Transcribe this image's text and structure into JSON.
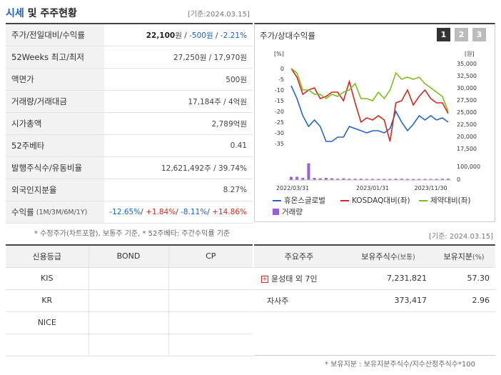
{
  "header": {
    "title_a": "시세",
    "title_b": "및 주주현황",
    "asof": "[기준:2024.03.15]"
  },
  "quote": {
    "rows": [
      {
        "label": "주가/전일대비/수익률"
      },
      {
        "label": "52Weeks 최고/최저",
        "value": "27,250원 / 17,970원"
      },
      {
        "label": "액면가",
        "value": "500원"
      },
      {
        "label": "거래량/거래대금",
        "value": "17,184주 / 4억원"
      },
      {
        "label": "시가총액",
        "value": "2,789억원"
      },
      {
        "label": "52주베타",
        "value": "0.41"
      },
      {
        "label": "발행주식수/유동비율",
        "value": "12,621,492주 / 39.74%"
      },
      {
        "label": "외국인지분율",
        "value": "8.27%"
      },
      {
        "label": "수익률",
        "label_small": "(1M/3M/6M/1Y)"
      }
    ],
    "price": "22,100",
    "price_unit": "원 /",
    "change": "-500원",
    "change_rate": "-2.21%",
    "returns": [
      "-12.65%",
      "+1.84%",
      "-8.11%",
      "+14.86%"
    ]
  },
  "note1": "* 수정주가(차트포함), 보통주 기준, * 52주베타: 주간수익률 기준",
  "chart_panel": {
    "title": "주가/상대수익률",
    "pages": [
      "1",
      "2",
      "3"
    ],
    "active_page": 0
  },
  "chart_data": {
    "type": "line",
    "x_ticks": [
      "2022/03/31",
      "2023/01/31",
      "2023/11/30"
    ],
    "y_left_label": "[%]",
    "y_left_ticks": [
      "0",
      "-5",
      "-10",
      "-15",
      "-20",
      "-25",
      "-30",
      "-35"
    ],
    "y_right_label": "[원]",
    "y_right_ticks": [
      "35,000",
      "32,500",
      "30,000",
      "27,500",
      "25,000",
      "22,500",
      "20,000",
      "17,500"
    ],
    "vol_ticks": [
      "100,000",
      "0"
    ],
    "ylim_left": [
      -38,
      2
    ],
    "series": [
      {
        "name": "휴온스글로벌",
        "color": "#2563c9",
        "values": [
          -8,
          -14,
          -22,
          -27,
          -24,
          -27,
          -34,
          -34,
          -32,
          -32,
          -27,
          -28,
          -29,
          -30,
          -29,
          -29,
          -30,
          -28,
          -20,
          -25,
          -29,
          -26,
          -22,
          -24,
          -22,
          -24,
          -23,
          -25
        ]
      },
      {
        "name": "KOSDAQ대비(좌)",
        "color": "#d8261c",
        "values": [
          0,
          -4,
          -12,
          -10,
          -9,
          -14,
          -13,
          -11,
          -11,
          -15,
          -6,
          -16,
          -25,
          -23,
          -24,
          -22,
          -24,
          -34,
          -16,
          -15,
          -10,
          -17,
          -13,
          -10,
          -14,
          -16,
          -16,
          -21
        ]
      },
      {
        "name": "제약대비(좌)",
        "color": "#7cbd1e",
        "values": [
          0,
          -2,
          -10,
          -10,
          -12,
          -12,
          -14,
          -12,
          -13,
          -11,
          -10,
          -7,
          -14,
          -14,
          -15,
          -11,
          -14,
          -10,
          -2,
          -5,
          -4,
          -5,
          -4,
          -7,
          -9,
          -11,
          -13,
          -20
        ]
      },
      {
        "name": "거래량",
        "color": "#9a5fd6",
        "values": [
          15,
          15,
          10,
          78,
          10,
          8,
          10,
          8,
          6,
          8,
          6,
          6,
          6,
          5,
          5,
          5,
          5,
          5,
          6,
          6,
          5,
          5,
          5,
          5,
          5,
          5,
          6,
          6
        ]
      }
    ]
  },
  "asof2": "[기준: 2024.03.15]",
  "credit_table": {
    "headers": [
      "신용등급",
      "BOND",
      "CP"
    ],
    "rows": [
      [
        "KIS",
        "",
        ""
      ],
      [
        "KR",
        "",
        ""
      ],
      [
        "NICE",
        "",
        ""
      ],
      [
        "",
        "",
        ""
      ]
    ]
  },
  "holder_table": {
    "headers": [
      "주요주주",
      "보유주식수",
      "(보통)",
      "보유지분",
      "(%)"
    ],
    "rows": [
      {
        "name": "윤성태 외 7인",
        "shares": "7,231,821",
        "pct": "57.30",
        "expandable": true
      },
      {
        "name": "자사주",
        "shares": "373,417",
        "pct": "2.96",
        "expandable": false
      }
    ]
  },
  "note2": "* 보유지분 : 보유지분주식수/지수산정주식수*100"
}
